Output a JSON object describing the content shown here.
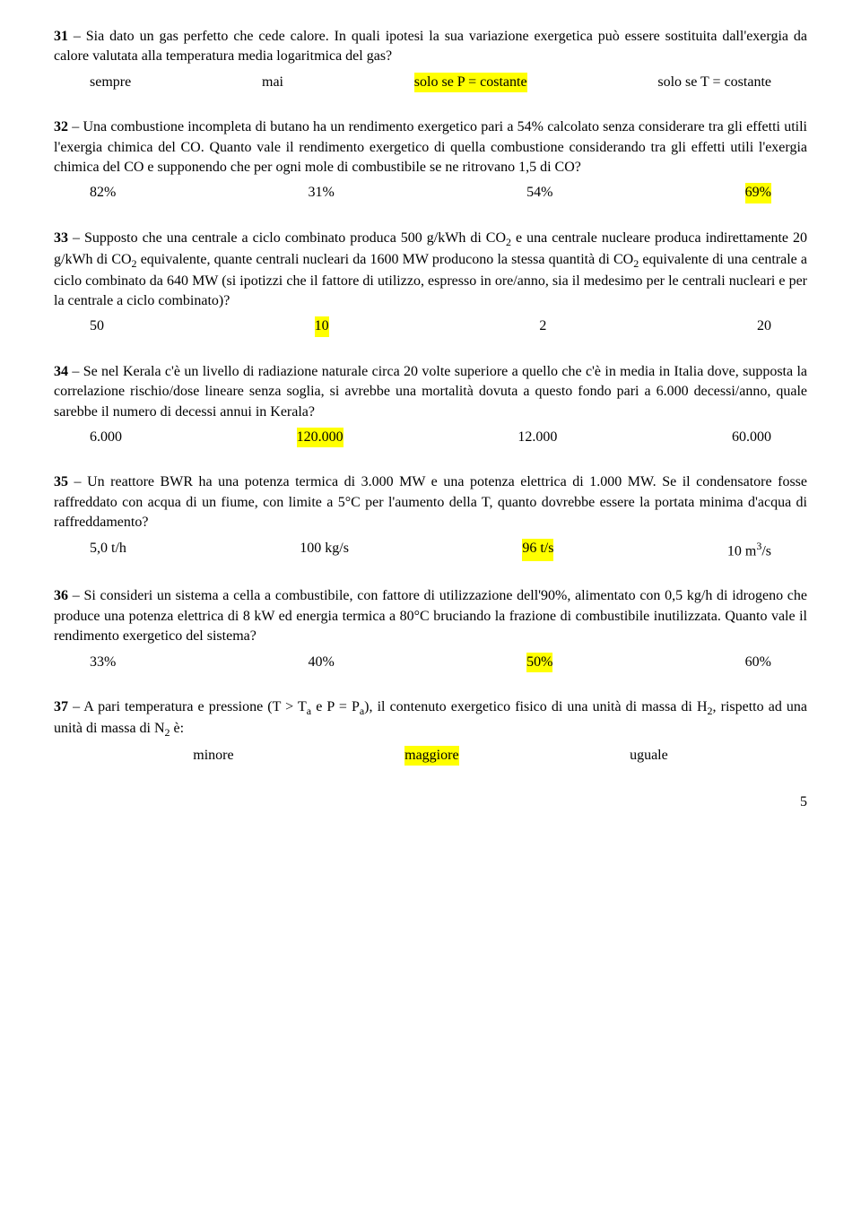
{
  "q31": {
    "num": "31",
    "text": " – Sia dato un gas perfetto che cede calore. In quali ipotesi la sua variazione exergetica può essere sostituita dall'exergia da calore valutata alla temperatura media logaritmica del gas?",
    "opts": [
      "sempre",
      "mai",
      "solo se P = costante",
      "solo se T = costante"
    ],
    "correct": 2
  },
  "q32": {
    "num": "32",
    "text": " – Una combustione incompleta di butano ha un rendimento exergetico pari a 54% calcolato senza considerare tra gli effetti utili l'exergia chimica del CO. Quanto vale il rendimento exergetico di quella combustione considerando tra gli effetti utili l'exergia chimica del CO e supponendo che per ogni mole di combustibile se ne ritrovano 1,5 di CO?",
    "opts": [
      "82%",
      "31%",
      "54%",
      "69%"
    ],
    "correct": 3
  },
  "q33": {
    "num": "33",
    "text_pre": " – Supposto che una centrale a ciclo combinato produca 500 g/kWh di CO",
    "text_mid1": " e una centrale nucleare produca indirettamente 20 g/kWh di CO",
    "text_mid2": " equivalente, quante centrali nucleari da 1600 MW producono la stessa quantità di CO",
    "text_post": " equivalente di una centrale a ciclo combinato da 640 MW (si ipotizzi che il fattore di utilizzo, espresso in ore/anno, sia il medesimo per le centrali nucleari e per la centrale a ciclo combinato)?",
    "opts": [
      "50",
      "10",
      "2",
      "20"
    ],
    "correct": 1
  },
  "q34": {
    "num": "34",
    "text": " – Se nel Kerala c'è un livello di radiazione naturale circa 20 volte superiore a quello che c'è in media in Italia dove, supposta la correlazione rischio/dose lineare senza soglia, si avrebbe una mortalità dovuta a questo fondo pari a 6.000 decessi/anno, quale sarebbe il numero di decessi annui in Kerala?",
    "opts": [
      "6.000",
      "120.000",
      "12.000",
      "60.000"
    ],
    "correct": 1
  },
  "q35": {
    "num": "35",
    "text": " – Un reattore BWR ha una potenza termica di 3.000 MW e una potenza elettrica di 1.000 MW. Se il condensatore fosse raffreddato con acqua di un fiume, con limite a 5°C per l'aumento della T, quanto dovrebbe essere la portata minima d'acqua di raffreddamento?",
    "opts": [
      "5,0 t/h",
      "100 kg/s",
      "96 t/s",
      "10 m"
    ],
    "opt4_sup": "3",
    "opt4_post": "/s",
    "correct": 2
  },
  "q36": {
    "num": "36",
    "text": " – Si consideri un sistema a cella a combustibile, con fattore di utilizzazione dell'90%, alimentato con 0,5 kg/h di idrogeno che produce una potenza elettrica di 8 kW ed energia termica a 80°C bruciando la frazione di combustibile inutilizzata. Quanto vale il rendimento exergetico del sistema?",
    "opts": [
      "33%",
      "40%",
      "50%",
      "60%"
    ],
    "correct": 2
  },
  "q37": {
    "num": "37",
    "text_pre": " – A pari temperatura e pressione (T > T",
    "text_mid1": " e P = P",
    "text_mid2": "), il contenuto exergetico fisico di una unità di massa di H",
    "text_mid3": ", rispetto ad una unità di massa di N",
    "text_post": " è:",
    "opts": [
      "minore",
      "maggiore",
      "uguale"
    ],
    "correct": 1
  },
  "page": "5"
}
